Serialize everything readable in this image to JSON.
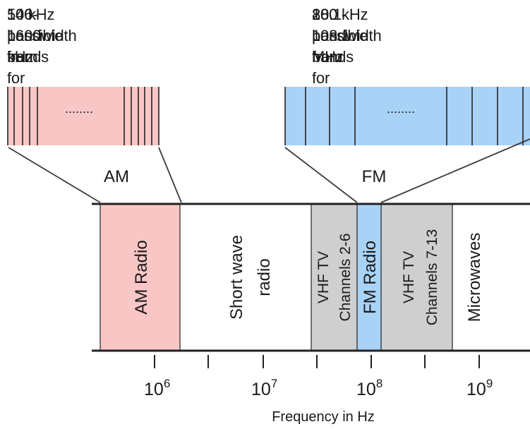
{
  "am_note": {
    "line1": "10 kHz bandwidth from",
    "line2": "540-1600 kHz for",
    "line3": "106 possible bands"
  },
  "fm_note": {
    "line1": "200 kHz bandwidth from",
    "line2": "88.1-108.1 MHz for",
    "line3": "100 possible bands"
  },
  "am_zoom": {
    "label": "AM",
    "dots": "........",
    "color": "#f9c6c6"
  },
  "fm_zoom": {
    "label": "FM",
    "dots": "........",
    "color": "#a9d2f7"
  },
  "bands": [
    {
      "line1": "AM Radio",
      "line2": "",
      "color": "#f9c6c6"
    },
    {
      "line1": "Short wave",
      "line2": "radio",
      "color": "#ffffff"
    },
    {
      "line1": "VHF TV",
      "line2": "Channels 2-6",
      "color": "#cfcfcf"
    },
    {
      "line1": "FM Radio",
      "line2": "",
      "color": "#a9d2f7"
    },
    {
      "line1": "VHF TV",
      "line2": "Channels 7-13",
      "color": "#cfcfcf"
    },
    {
      "line1": "Microwaves",
      "line2": "",
      "color": "#ffffff"
    }
  ],
  "axis": {
    "ticks": [
      {
        "base": "10",
        "exp": "6"
      },
      {
        "base": "10",
        "exp": "7"
      },
      {
        "base": "10",
        "exp": "8"
      },
      {
        "base": "10",
        "exp": "9"
      }
    ],
    "xlabel": "Frequency in Hz"
  }
}
